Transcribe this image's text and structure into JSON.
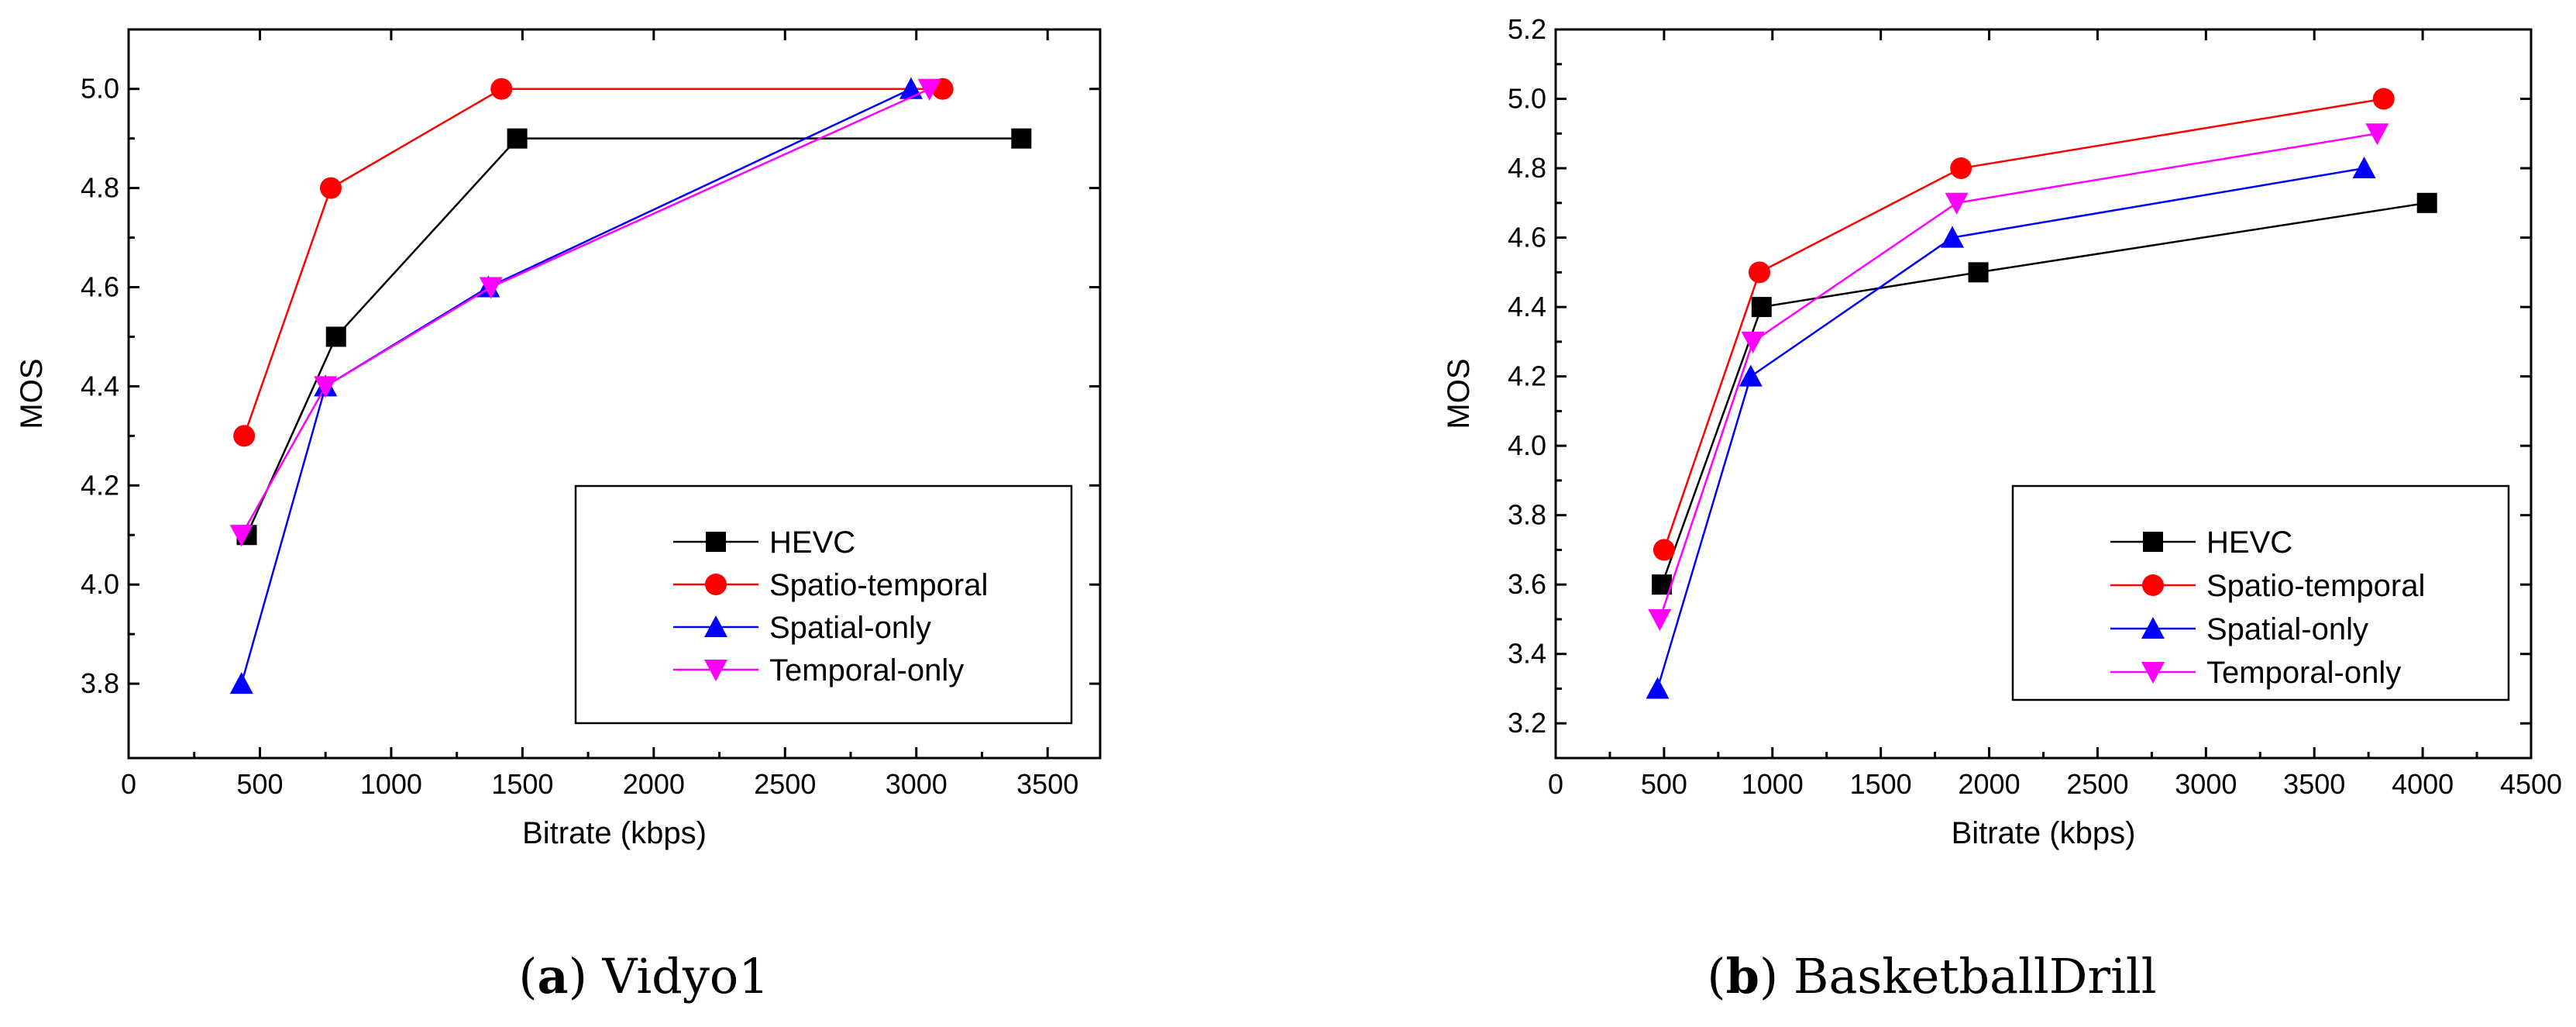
{
  "chart_data": [
    {
      "type": "line",
      "panel_letter": "a",
      "panel_title": "Vidyo1",
      "title": "",
      "xlabel": "Bitrate (kbps)",
      "ylabel": "MOS",
      "xlim": [
        0,
        3700
      ],
      "ylim": [
        3.65,
        5.12
      ],
      "xticks": [
        0,
        500,
        1000,
        1500,
        2000,
        2500,
        3000,
        3500
      ],
      "yticks": [
        3.8,
        4.0,
        4.2,
        4.4,
        4.6,
        4.8,
        5.0
      ],
      "ytick_decimals": 1,
      "legend_position": "lower-right",
      "series": [
        {
          "name": "HEVC",
          "color": "#000000",
          "marker": "square",
          "x": [
            450,
            790,
            1480,
            3400
          ],
          "y": [
            4.1,
            4.5,
            4.9,
            4.9
          ]
        },
        {
          "name": "Spatio-temporal",
          "color": "#ff0000",
          "marker": "circle",
          "x": [
            440,
            770,
            1420,
            3100
          ],
          "y": [
            4.3,
            4.8,
            5.0,
            5.0
          ]
        },
        {
          "name": "Spatial-only",
          "color": "#0000ff",
          "marker": "triangle-up",
          "x": [
            430,
            750,
            1370,
            2980
          ],
          "y": [
            3.8,
            4.4,
            4.6,
            5.0
          ]
        },
        {
          "name": "Temporal-only",
          "color": "#ff00ff",
          "marker": "triangle-down",
          "x": [
            430,
            750,
            1380,
            3050
          ],
          "y": [
            4.1,
            4.4,
            4.6,
            5.0
          ]
        }
      ]
    },
    {
      "type": "line",
      "panel_letter": "b",
      "panel_title": "BasketballDrill",
      "title": "",
      "xlabel": "Bitrate (kbps)",
      "ylabel": "MOS",
      "xlim": [
        0,
        4500
      ],
      "ylim": [
        3.1,
        5.2
      ],
      "xticks": [
        0,
        500,
        1000,
        1500,
        2000,
        2500,
        3000,
        3500,
        4000,
        4500
      ],
      "yticks": [
        3.2,
        3.4,
        3.6,
        3.8,
        4.0,
        4.2,
        4.4,
        4.6,
        4.8,
        5.0,
        5.2
      ],
      "ytick_decimals": 1,
      "legend_position": "lower-right",
      "series": [
        {
          "name": "HEVC",
          "color": "#000000",
          "marker": "square",
          "x": [
            490,
            950,
            1950,
            4020
          ],
          "y": [
            3.6,
            4.4,
            4.5,
            4.7
          ]
        },
        {
          "name": "Spatio-temporal",
          "color": "#ff0000",
          "marker": "circle",
          "x": [
            500,
            940,
            1870,
            3820
          ],
          "y": [
            3.7,
            4.5,
            4.8,
            5.0
          ]
        },
        {
          "name": "Spatial-only",
          "color": "#0000ff",
          "marker": "triangle-up",
          "x": [
            470,
            900,
            1830,
            3730
          ],
          "y": [
            3.3,
            4.2,
            4.6,
            4.8
          ]
        },
        {
          "name": "Temporal-only",
          "color": "#ff00ff",
          "marker": "triangle-down",
          "x": [
            480,
            910,
            1850,
            3790
          ],
          "y": [
            3.5,
            4.3,
            4.7,
            4.9
          ]
        }
      ]
    }
  ]
}
